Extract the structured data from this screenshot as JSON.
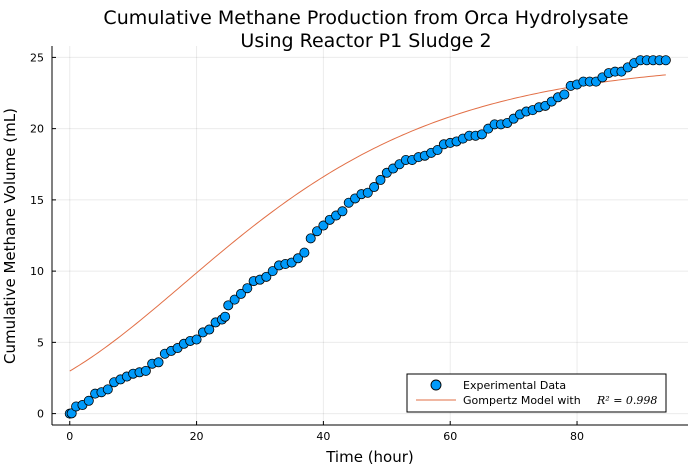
{
  "chart_data": {
    "type": "scatter",
    "title": [
      "Cumulative Methane Production from Orca Hydrolysate",
      "Using Reactor P1 Sludge 2"
    ],
    "xlabel": "Time (hour)",
    "ylabel": "Cumulative Methane Volume (mL)",
    "xlim": [
      -2.8,
      97.5
    ],
    "ylim": [
      -0.8,
      25.8
    ],
    "xticks": [
      0,
      20,
      40,
      60,
      80
    ],
    "yticks": [
      0,
      5,
      10,
      15,
      20,
      25
    ],
    "grid": true,
    "legend_position": "bottom-right",
    "series": [
      {
        "name": "Experimental Data",
        "kind": "scatter",
        "color": "#009AFA",
        "x": [
          0,
          0.3,
          1,
          2,
          3,
          4,
          5,
          6,
          7,
          8,
          9,
          10,
          11,
          12,
          13,
          14,
          15,
          16,
          17,
          18,
          19,
          20,
          21,
          22,
          23,
          24,
          24.5,
          25,
          26,
          27,
          28,
          29,
          30,
          31,
          32,
          33,
          34,
          35,
          36,
          37,
          38,
          39,
          40,
          41,
          42,
          43,
          44,
          45,
          46,
          47,
          48,
          49,
          50,
          51,
          52,
          53,
          54,
          55,
          56,
          57,
          58,
          59,
          60,
          61,
          62,
          63,
          64,
          65,
          66,
          67,
          68,
          69,
          70,
          71,
          72,
          73,
          74,
          75,
          76,
          77,
          78,
          79,
          80,
          81,
          82,
          83,
          84,
          85,
          86,
          87,
          88,
          89,
          90,
          91,
          92,
          93,
          94
        ],
        "y": [
          0,
          0.02,
          0.5,
          0.6,
          0.9,
          1.4,
          1.5,
          1.7,
          2.2,
          2.4,
          2.6,
          2.8,
          2.9,
          3.0,
          3.5,
          3.6,
          4.2,
          4.4,
          4.6,
          4.9,
          5.1,
          5.2,
          5.7,
          5.9,
          6.4,
          6.6,
          6.8,
          7.6,
          8.0,
          8.4,
          8.8,
          9.3,
          9.4,
          9.6,
          10.0,
          10.4,
          10.5,
          10.6,
          10.9,
          11.3,
          12.3,
          12.8,
          13.2,
          13.6,
          13.9,
          14.2,
          14.8,
          15.1,
          15.4,
          15.5,
          15.9,
          16.4,
          16.9,
          17.2,
          17.5,
          17.8,
          17.8,
          18.0,
          18.1,
          18.3,
          18.5,
          18.9,
          19.0,
          19.1,
          19.3,
          19.5,
          19.5,
          19.6,
          20.0,
          20.3,
          20.3,
          20.4,
          20.7,
          21.0,
          21.2,
          21.3,
          21.5,
          21.6,
          21.9,
          22.2,
          22.4,
          23.0,
          23.1,
          23.3,
          23.3,
          23.3,
          23.6,
          23.9,
          24.0,
          24.0,
          24.3,
          24.6,
          24.8,
          24.8,
          24.8,
          24.8,
          24.8
        ]
      },
      {
        "name": "Gompertz Model with",
        "name_suffix_math": "R² = 0.998",
        "kind": "line",
        "color": "#E26F46",
        "model": "gompertz",
        "params": {
          "P": 24.8,
          "Rm": 0.38,
          "lambda": -6
        },
        "x_range": [
          0,
          94
        ]
      }
    ]
  }
}
